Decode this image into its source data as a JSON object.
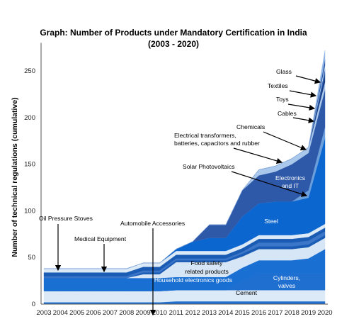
{
  "chart_data": {
    "type": "area",
    "title": "Graph: Number of Products under Mandatory Certification in India",
    "subtitle": "(2003 - 2020)",
    "xlabel": "",
    "ylabel": "Number of technical regulations (cumulative)",
    "x": [
      "2003",
      "2004",
      "2005",
      "2006",
      "2007",
      "2008",
      "2009",
      "2010",
      "2011",
      "2012",
      "2013",
      "2014",
      "2015",
      "2016",
      "2017",
      "2018",
      "2019",
      "2020"
    ],
    "ylim": [
      0,
      280
    ],
    "yticks": [
      0,
      50,
      100,
      150,
      200,
      250
    ],
    "stacked": true,
    "grid": false,
    "series": [
      {
        "name": "Cement",
        "color": "#1f6fd0",
        "values": [
          2,
          2,
          2,
          2,
          2,
          2,
          2,
          2,
          3,
          3,
          3,
          3,
          3,
          3,
          3,
          3,
          3,
          3
        ]
      },
      {
        "name": "Cement_fill",
        "color": "#dce9f7",
        "values": [
          12,
          12,
          12,
          12,
          12,
          12,
          12,
          12,
          12,
          12,
          12,
          12,
          12,
          12,
          12,
          12,
          12,
          12
        ]
      },
      {
        "name": "Cylinders, valves",
        "color": "#1f6fd0",
        "values": [
          0,
          0,
          0,
          0,
          0,
          0,
          0,
          0,
          0,
          0,
          0,
          0,
          10,
          18,
          18,
          18,
          18,
          18
        ]
      },
      {
        "name": "Household electronics goods",
        "color": "#1a6fd3",
        "values": [
          14,
          14,
          14,
          14,
          14,
          14,
          14,
          14,
          14,
          14,
          14,
          14,
          14,
          14,
          14,
          14,
          16,
          26
        ]
      },
      {
        "name": "Food safety related products",
        "color": "#d6e6f7",
        "values": [
          0,
          0,
          0,
          0,
          0,
          0,
          4,
          4,
          16,
          16,
          16,
          16,
          12,
          12,
          12,
          12,
          12,
          12
        ]
      },
      {
        "name": "Automobile Accessories",
        "color": "#1a5bb4",
        "values": [
          0,
          0,
          0,
          0,
          0,
          0,
          2,
          2,
          2,
          2,
          2,
          2,
          3,
          3,
          3,
          3,
          3,
          3
        ]
      },
      {
        "name": "Medical Equipment",
        "color": "#3b76c9",
        "values": [
          2,
          2,
          2,
          2,
          2,
          2,
          2,
          2,
          2,
          2,
          2,
          2,
          2,
          4,
          4,
          4,
          4,
          4
        ]
      },
      {
        "name": "Oil Pressure Stoves",
        "color": "#1a5bb4",
        "values": [
          4,
          4,
          4,
          4,
          4,
          4,
          4,
          4,
          4,
          4,
          4,
          4,
          4,
          4,
          4,
          4,
          4,
          4
        ]
      },
      {
        "name": "Oil Pressure Stoves_fill",
        "color": "#dce9f7",
        "values": [
          4,
          4,
          4,
          4,
          4,
          4,
          4,
          4,
          4,
          4,
          4,
          4,
          4,
          4,
          4,
          4,
          4,
          4
        ]
      },
      {
        "name": "Steel",
        "color": "#0b66cf",
        "values": [
          0,
          0,
          0,
          0,
          0,
          0,
          0,
          0,
          2,
          10,
          14,
          14,
          30,
          34,
          36,
          36,
          38,
          92
        ]
      },
      {
        "name": "Solar Photovoltaics",
        "color": "#6a9fdc",
        "values": [
          0,
          0,
          0,
          0,
          0,
          0,
          0,
          0,
          0,
          0,
          0,
          0,
          0,
          0,
          0,
          0,
          8,
          12
        ]
      },
      {
        "name": "Electronics and IT",
        "color": "#2e58a8",
        "values": [
          0,
          0,
          0,
          0,
          0,
          0,
          0,
          0,
          0,
          0,
          14,
          14,
          28,
          30,
          32,
          40,
          40,
          40
        ]
      },
      {
        "name": "Electrical transformers, batteries, capacitors and rubber",
        "color": "#aac8ec",
        "values": [
          0,
          0,
          0,
          0,
          0,
          0,
          0,
          0,
          0,
          0,
          0,
          0,
          0,
          6,
          6,
          6,
          6,
          8
        ]
      },
      {
        "name": "Chemicals",
        "color": "#1b3f84",
        "values": [
          0,
          0,
          0,
          0,
          0,
          0,
          0,
          0,
          0,
          0,
          0,
          0,
          0,
          0,
          0,
          0,
          0,
          8
        ]
      },
      {
        "name": "Cables",
        "color": "#3065b8",
        "values": [
          0,
          0,
          0,
          0,
          0,
          0,
          0,
          0,
          0,
          0,
          0,
          0,
          0,
          0,
          0,
          0,
          0,
          6
        ]
      },
      {
        "name": "Toys",
        "color": "#c7dbf3",
        "values": [
          0,
          0,
          0,
          0,
          0,
          0,
          0,
          0,
          0,
          0,
          0,
          0,
          0,
          0,
          0,
          0,
          0,
          4
        ]
      },
      {
        "name": "Textiles",
        "color": "#2c57a3",
        "values": [
          0,
          0,
          0,
          0,
          0,
          0,
          0,
          0,
          0,
          0,
          0,
          0,
          0,
          0,
          0,
          0,
          0,
          6
        ]
      },
      {
        "name": "Glass",
        "color": "#8fb6e6",
        "values": [
          0,
          0,
          0,
          0,
          0,
          0,
          0,
          0,
          0,
          0,
          0,
          0,
          0,
          0,
          0,
          0,
          0,
          10
        ]
      }
    ],
    "annotations": [
      {
        "text": "Glass"
      },
      {
        "text": "Textiles"
      },
      {
        "text": "Toys"
      },
      {
        "text": "Cables"
      },
      {
        "text": "Chemicals"
      },
      {
        "text": "Electrical transformers,"
      },
      {
        "text": "batteries, capacitors and rubber"
      },
      {
        "text": "Solar Photovoltaics"
      },
      {
        "text": "Electronics"
      },
      {
        "text": "and IT"
      },
      {
        "text": "Steel"
      },
      {
        "text": "Oil Pressure Stoves"
      },
      {
        "text": "Medical Equipment"
      },
      {
        "text": "Automobile Accessories"
      },
      {
        "text": "Food safety"
      },
      {
        "text": "related products"
      },
      {
        "text": "Household electronics goods"
      },
      {
        "text": "Cylinders,"
      },
      {
        "text": "valves"
      },
      {
        "text": "Cement"
      }
    ]
  }
}
